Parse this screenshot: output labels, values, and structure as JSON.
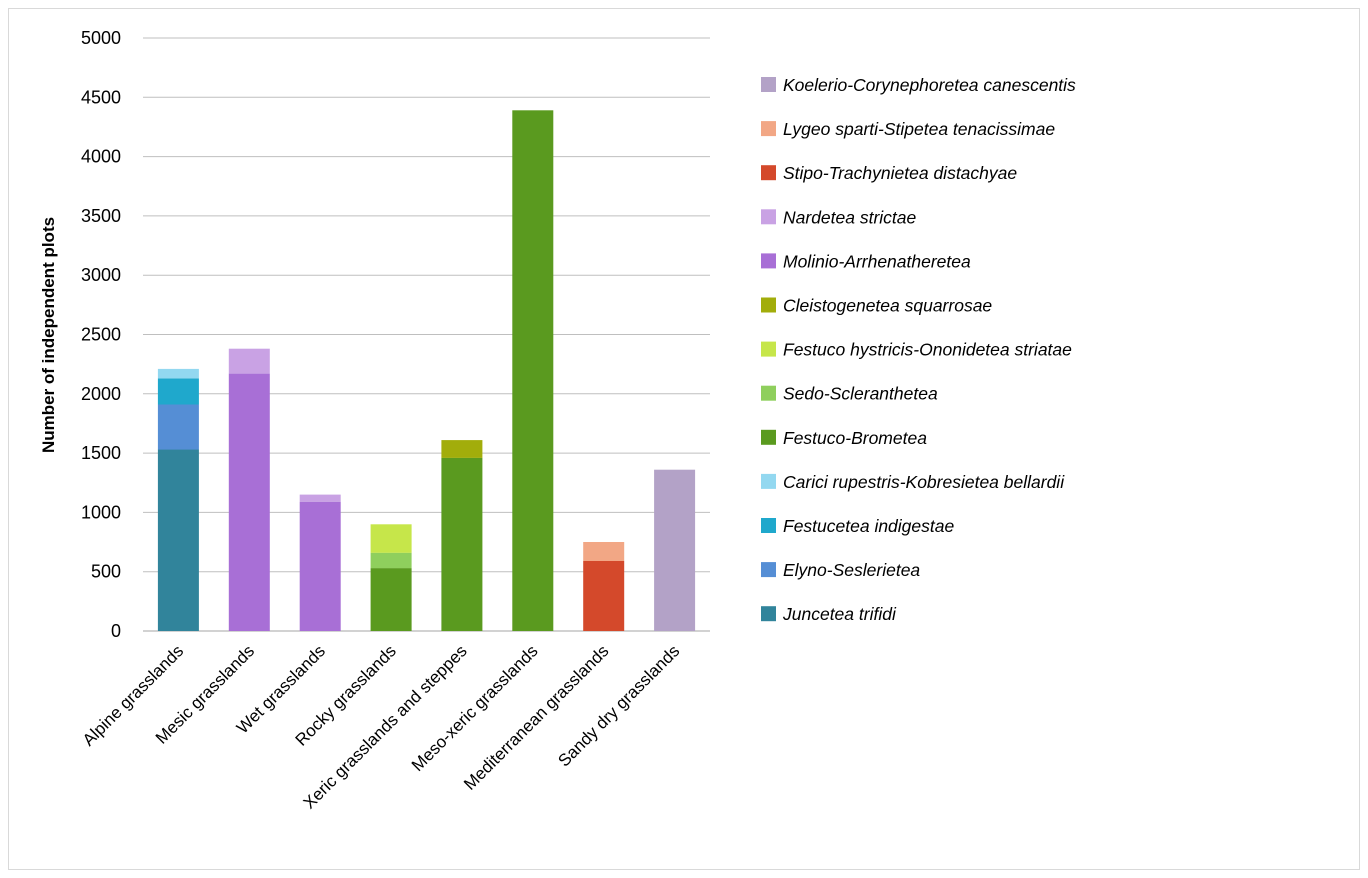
{
  "chart_data": {
    "type": "bar",
    "stacked": true,
    "title": "",
    "xlabel": "",
    "ylabel": "Number of independent plots",
    "ylim": [
      0,
      5000
    ],
    "yticks": [
      0,
      500,
      1000,
      1500,
      2000,
      2500,
      3000,
      3500,
      4000,
      4500,
      5000
    ],
    "grid": true,
    "legend_position": "right",
    "categories": [
      "Alpine grasslands",
      "Mesic grasslands",
      "Wet grasslands",
      "Rocky grasslands",
      "Xeric grasslands and steppes",
      "Meso-xeric grasslands",
      "Mediterranean grasslands",
      "Sandy dry grasslands"
    ],
    "series": [
      {
        "name": "Juncetea trifidi",
        "color": "#31849b",
        "values": [
          1530,
          0,
          0,
          0,
          0,
          0,
          0,
          0
        ]
      },
      {
        "name": "Elyno-Seslerietea",
        "color": "#558ed5",
        "values": [
          380,
          0,
          0,
          0,
          0,
          0,
          0,
          0
        ]
      },
      {
        "name": "Festucetea indigestae",
        "color": "#1fa8cc",
        "values": [
          220,
          0,
          0,
          0,
          0,
          0,
          0,
          0
        ]
      },
      {
        "name": "Carici rupestris-Kobresietea bellardii",
        "color": "#93d8f0",
        "values": [
          80,
          0,
          0,
          0,
          0,
          0,
          0,
          0
        ]
      },
      {
        "name": "Festuco-Brometea",
        "color": "#5a9a1f",
        "values": [
          0,
          0,
          0,
          530,
          1460,
          4390,
          0,
          0
        ]
      },
      {
        "name": "Sedo-Scleranthetea",
        "color": "#8fcf5d",
        "values": [
          0,
          0,
          0,
          130,
          0,
          0,
          0,
          0
        ]
      },
      {
        "name": "Festuco hystricis-Ononidetea striatae",
        "color": "#c6e64a",
        "values": [
          0,
          0,
          0,
          240,
          0,
          0,
          0,
          0
        ]
      },
      {
        "name": "Cleistogenetea squarrosae",
        "color": "#a2ad0b",
        "values": [
          0,
          0,
          0,
          0,
          150,
          0,
          0,
          0
        ]
      },
      {
        "name": "Molinio-Arrhenatheretea",
        "color": "#a86fd6",
        "values": [
          0,
          2170,
          1090,
          0,
          0,
          0,
          0,
          0
        ]
      },
      {
        "name": "Nardetea strictae",
        "color": "#c9a2e4",
        "values": [
          0,
          210,
          60,
          0,
          0,
          0,
          0,
          0
        ]
      },
      {
        "name": "Stipo-Trachynietea distachyae",
        "color": "#d4492b",
        "values": [
          0,
          0,
          0,
          0,
          0,
          0,
          590,
          0
        ]
      },
      {
        "name": "Lygeo sparti-Stipetea tenacissimae",
        "color": "#f2a785",
        "values": [
          0,
          0,
          0,
          0,
          0,
          0,
          160,
          0
        ]
      },
      {
        "name": "Koelerio-Corynephoretea canescentis",
        "color": "#b3a2c7",
        "values": [
          0,
          0,
          0,
          0,
          0,
          0,
          0,
          1360
        ]
      }
    ]
  }
}
